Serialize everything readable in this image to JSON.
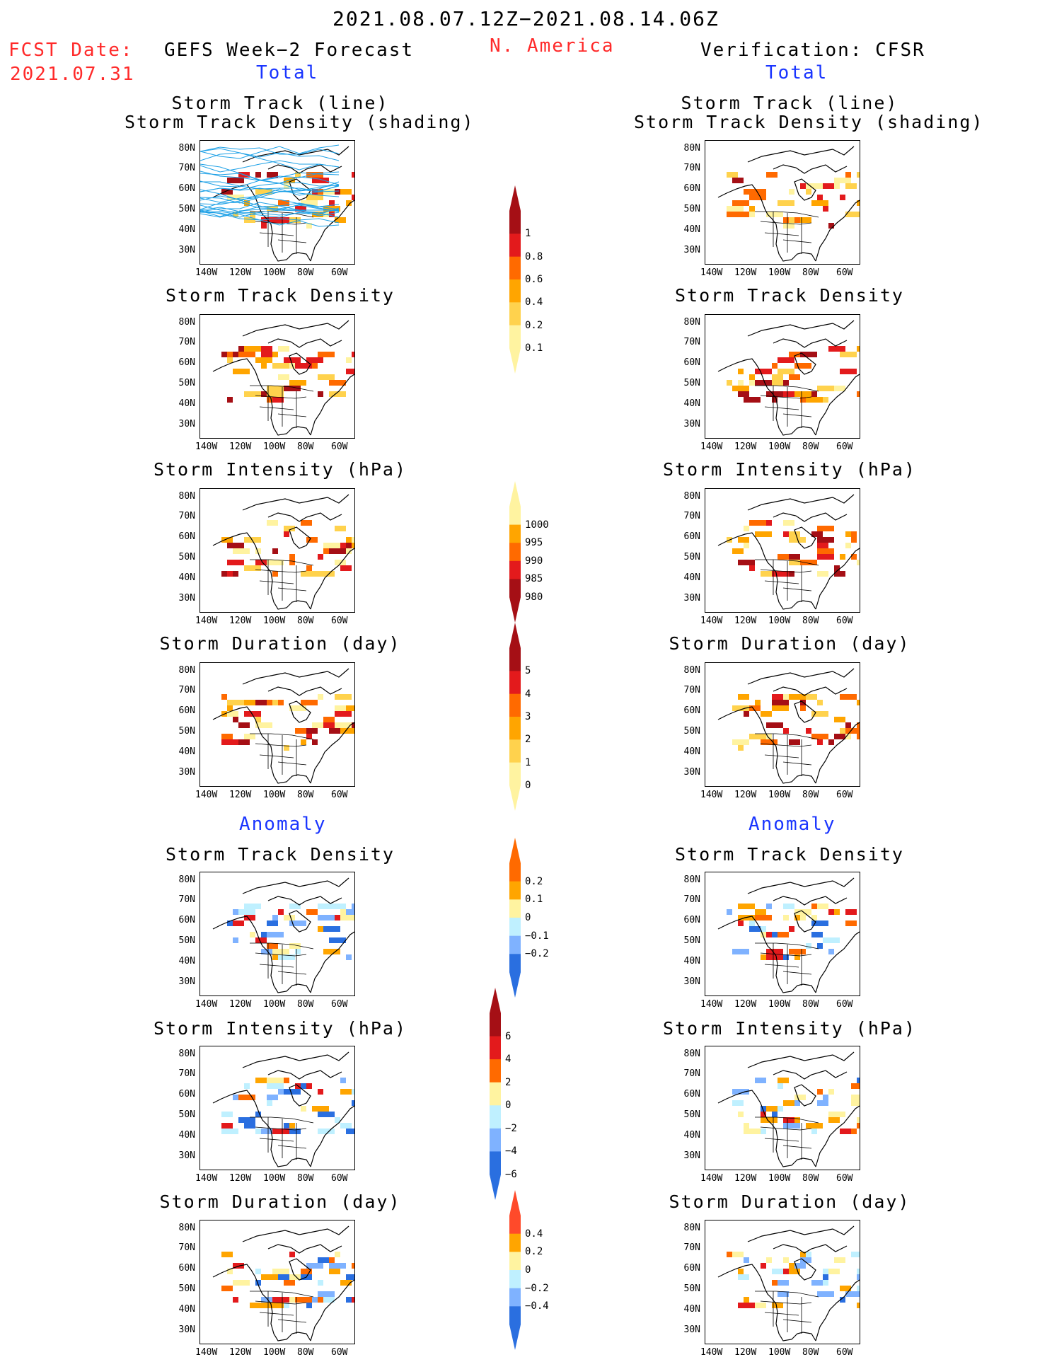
{
  "header": {
    "date_range": "2021.08.07.12Z−2021.08.14.06Z",
    "fcst_label": "FCST Date:",
    "fcst_date": "2021.07.31",
    "left_title": "GEFS Week−2 Forecast",
    "region": "N. America",
    "right_title": "Verification: CFSR",
    "section_total": "Total",
    "section_anomaly": "Anomaly"
  },
  "axes": {
    "lat_labels": [
      "80N",
      "70N",
      "60N",
      "50N",
      "40N",
      "30N"
    ],
    "lon_labels": [
      "140W",
      "120W",
      "100W",
      "80W",
      "60W"
    ]
  },
  "panels": {
    "track_line_title1": "Storm Track (line)",
    "track_line_title2": "Storm Track Density (shading)",
    "density_title": "Storm Track Density",
    "intensity_title": "Storm Intensity (hPa)",
    "duration_title": "Storm Duration (day)"
  },
  "colorbars": {
    "density": {
      "labels": [
        "1",
        "0.8",
        "0.6",
        "0.4",
        "0.2",
        "0.1"
      ],
      "colors": [
        "#a50f15",
        "#e31a1c",
        "#ff6a00",
        "#ffa500",
        "#ffd24d",
        "#fff3a0"
      ]
    },
    "intensity": {
      "labels": [
        "1000",
        "995",
        "990",
        "985",
        "980"
      ],
      "colors": [
        "#fff3a0",
        "#ffa500",
        "#ff6a00",
        "#e31a1c",
        "#a50f15"
      ]
    },
    "duration": {
      "labels": [
        "5",
        "4",
        "3",
        "2",
        "1",
        "0"
      ],
      "colors": [
        "#a50f15",
        "#e31a1c",
        "#ff6a00",
        "#ffa500",
        "#ffd24d",
        "#fff3a0"
      ]
    },
    "anom_density": {
      "labels": [
        "0.2",
        "0.1",
        "0",
        "−0.1",
        "−0.2"
      ],
      "colors": [
        "#ff6a00",
        "#ffa500",
        "#fff3a0",
        "#bff0ff",
        "#7fb2ff",
        "#2a6fe0"
      ]
    },
    "anom_intensity": {
      "labels": [
        "6",
        "4",
        "2",
        "0",
        "−2",
        "−4",
        "−6"
      ],
      "colors": [
        "#a50f15",
        "#e31a1c",
        "#ff6a00",
        "#fff3a0",
        "#bff0ff",
        "#7fb2ff",
        "#2a6fe0"
      ]
    },
    "anom_duration": {
      "labels": [
        "0.4",
        "0.2",
        "0",
        "−0.2",
        "−0.4"
      ],
      "colors": [
        "#ff4a2a",
        "#ffa500",
        "#fff3a0",
        "#bff0ff",
        "#7fb2ff",
        "#2a6fe0"
      ]
    }
  }
}
